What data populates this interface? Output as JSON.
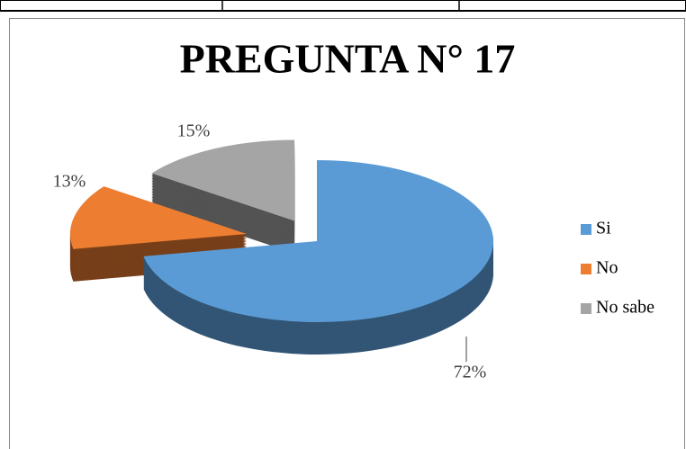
{
  "chart_data": {
    "type": "pie3d",
    "title": "PREGUNTA N° 17",
    "categories": [
      "Si",
      "No",
      "No sabe"
    ],
    "values": [
      72,
      13,
      15
    ],
    "value_labels": [
      "72%",
      "13%",
      "15%"
    ],
    "colors": [
      "#5b9bd5",
      "#ed7d31",
      "#a5a5a5"
    ],
    "legend": "right"
  }
}
